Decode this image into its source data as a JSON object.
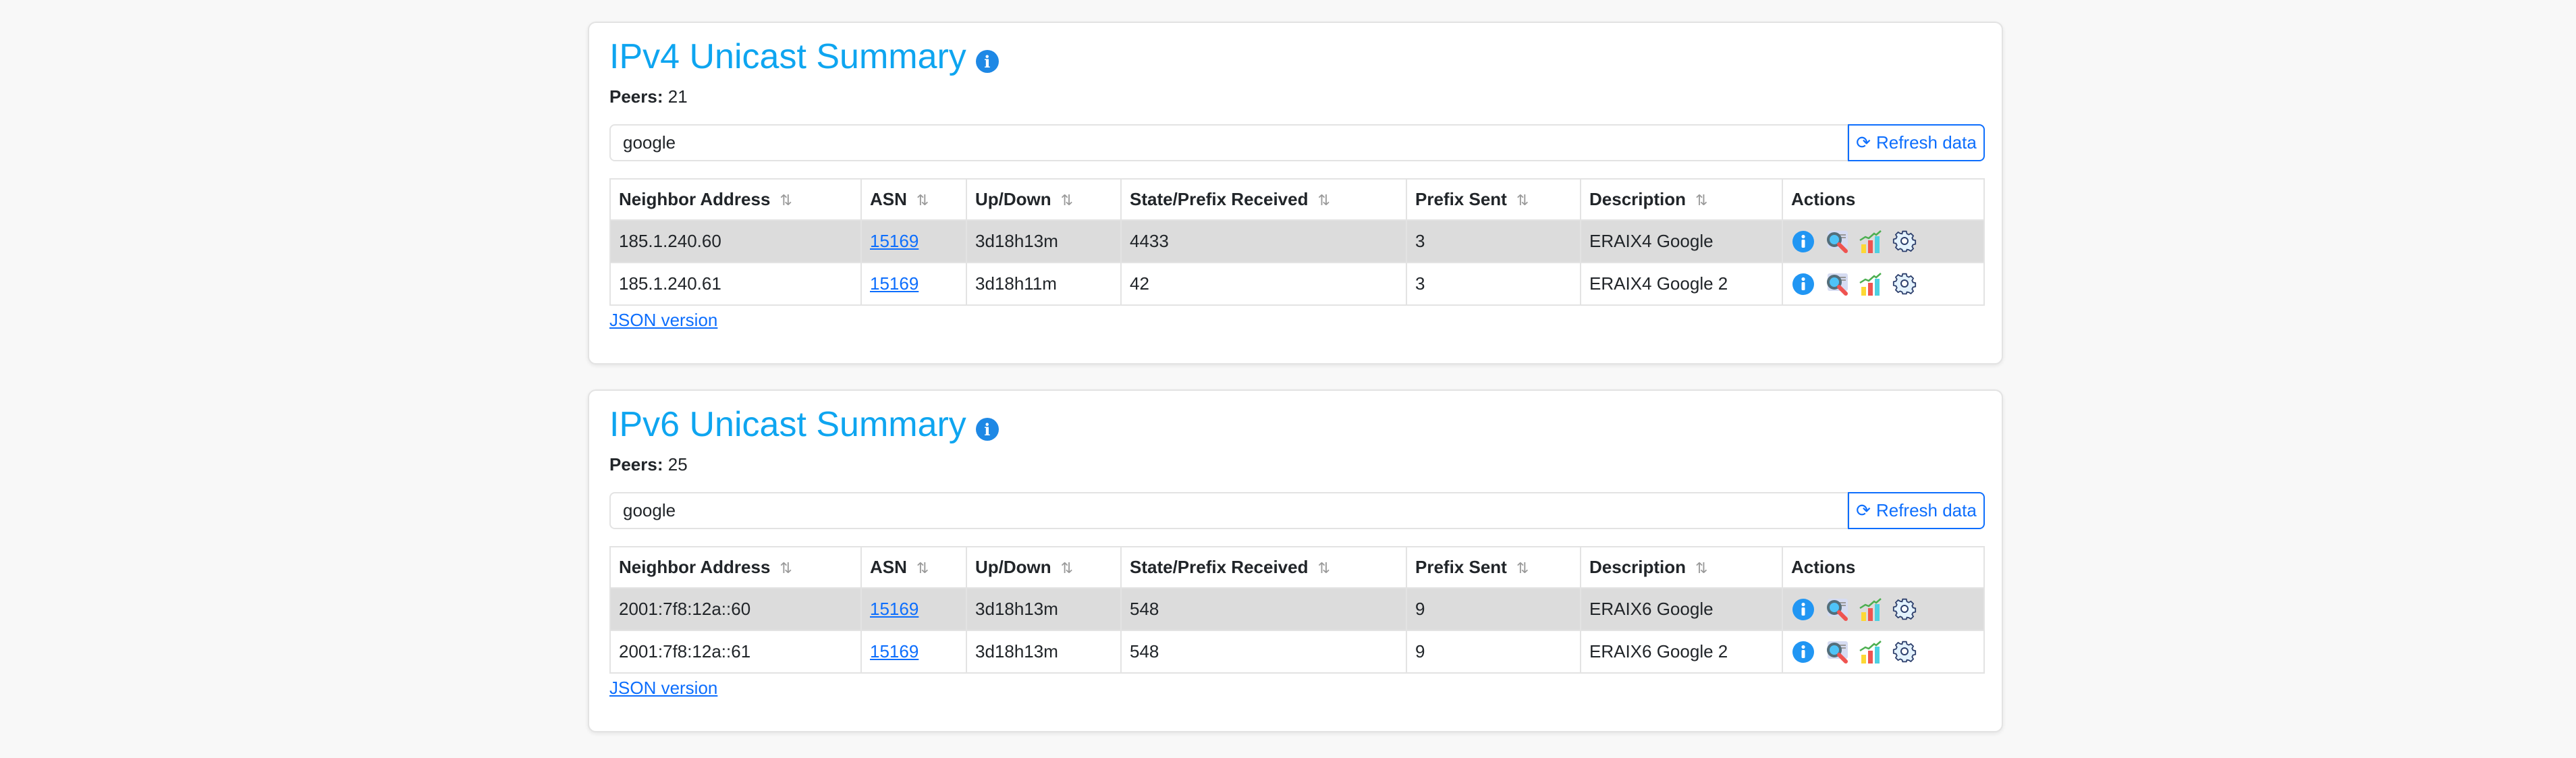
{
  "sections": [
    {
      "title": "IPv4 Unicast Summary",
      "peers_label": "Peers:",
      "peers": "21",
      "search_value": "google",
      "refresh_label": "Refresh data",
      "refresh_icon": "⟳",
      "columns": [
        "Neighbor Address",
        "ASN",
        "Up/Down",
        "State/Prefix Received",
        "Prefix Sent",
        "Description",
        "Actions"
      ],
      "rows": [
        {
          "neighbor": "185.1.240.60",
          "asn": "15169",
          "updown": "3d18h13m",
          "received": "4433",
          "sent": "3",
          "description": "ERAIX4 Google"
        },
        {
          "neighbor": "185.1.240.61",
          "asn": "15169",
          "updown": "3d18h11m",
          "received": "42",
          "sent": "3",
          "description": "ERAIX4 Google 2"
        }
      ],
      "json_link": "JSON version"
    },
    {
      "title": "IPv6 Unicast Summary",
      "peers_label": "Peers:",
      "peers": "25",
      "search_value": "google",
      "refresh_label": "Refresh data",
      "refresh_icon": "⟳",
      "columns": [
        "Neighbor Address",
        "ASN",
        "Up/Down",
        "State/Prefix Received",
        "Prefix Sent",
        "Description",
        "Actions"
      ],
      "rows": [
        {
          "neighbor": "2001:7f8:12a::60",
          "asn": "15169",
          "updown": "3d18h13m",
          "received": "548",
          "sent": "9",
          "description": "ERAIX6 Google"
        },
        {
          "neighbor": "2001:7f8:12a::61",
          "asn": "15169",
          "updown": "3d18h13m",
          "received": "548",
          "sent": "9",
          "description": "ERAIX6 Google 2"
        }
      ],
      "json_link": "JSON version"
    }
  ],
  "sort_icon": "⇅",
  "colors": {
    "title": "#0ea5f0",
    "link": "#0d6efd",
    "highlight_row": "#dcdcdc"
  }
}
